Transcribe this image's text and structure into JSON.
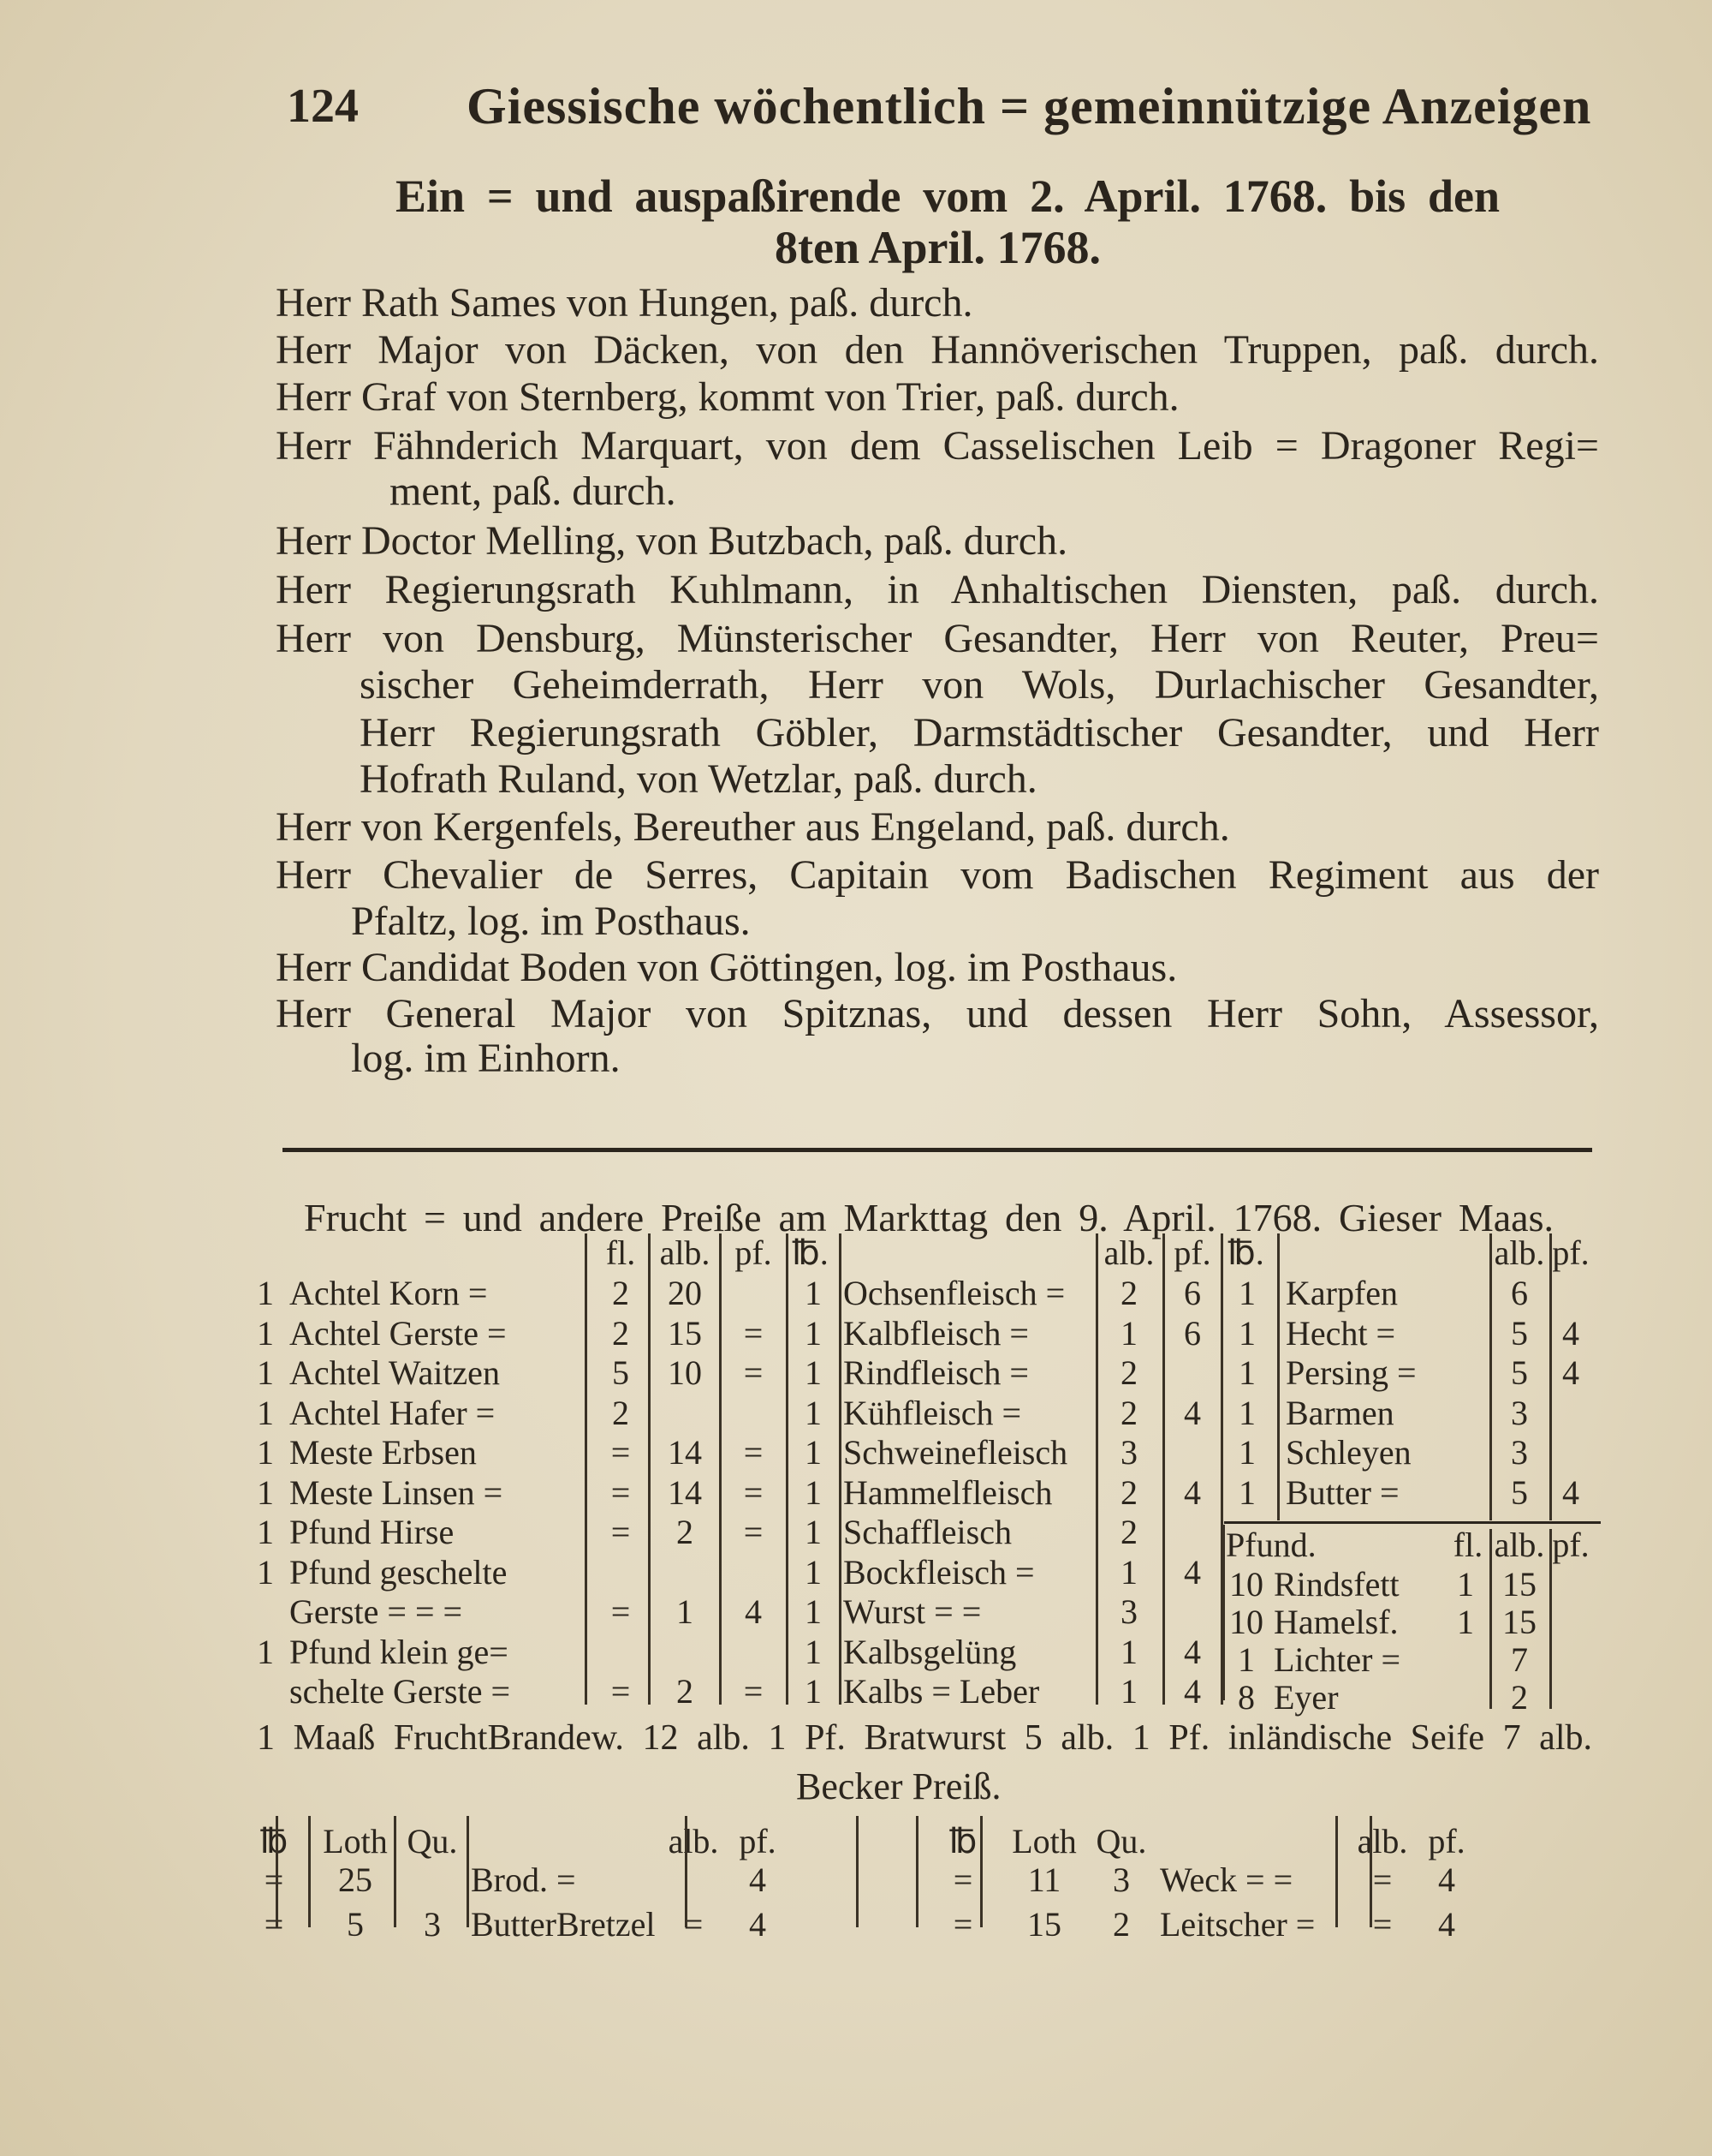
{
  "header": {
    "page_number": "124",
    "running_title": "Giessische wöchentlich = gemeinnützige Anzeigen"
  },
  "section": {
    "title_line1": "Ein = und auspaßirende vom 2. April. 1768. bis den",
    "title_line2": "8ten April. 1768."
  },
  "entries": [
    "Herr Rath Sames von Hungen, paß. durch.",
    "Herr Major von Däcken, von den Hannöverischen Truppen, paß. durch.",
    "Herr Graf von Sternberg, kommt von Trier, paß. durch.",
    "Herr Fähnderich Marquart, von dem Casselischen Leib = Dragoner Regi=",
    "ment, paß. durch.",
    "Herr Doctor Melling, von Butzbach, paß. durch.",
    "Herr Regierungsrath Kuhlmann, in Anhaltischen Diensten, paß. durch.",
    "Herr von Densburg, Münsterischer Gesandter, Herr von Reuter, Preu=",
    "sischer Geheimderrath, Herr von Wols, Durlachischer Gesandter,",
    "Herr Regierungsrath Göbler, Darmstädtischer Gesandter, und Herr",
    "Hofrath Ruland, von Wetzlar, paß. durch.",
    "Herr von Kergenfels, Bereuther aus Engeland, paß. durch.",
    "Herr Chevalier de Serres, Capitain vom Badischen Regiment aus der",
    "Pfaltz, log. im Posthaus.",
    "Herr Candidat Boden von Göttingen, log. im Posthaus.",
    "Herr General Major von Spitznas, und dessen Herr Sohn, Assessor,",
    "log. im Einhorn."
  ],
  "prices": {
    "title": "Frucht = und andere Preiße am Markttag den 9. April. 1768. Gieser Maas.",
    "grain": {
      "headers": [
        "fl.",
        "alb.",
        "pf."
      ],
      "rows": [
        [
          "1",
          "Achtel Korn =",
          "2",
          "20",
          ""
        ],
        [
          "1",
          "Achtel Gerste =",
          "2",
          "15",
          "="
        ],
        [
          "1",
          "Achtel Waitzen",
          "5",
          "10",
          "="
        ],
        [
          "1",
          "Achtel Hafer =",
          "2",
          "",
          ""
        ],
        [
          "1",
          "Meste Erbsen",
          "=",
          "14",
          "="
        ],
        [
          "1",
          "Meste Linsen =",
          "=",
          "14",
          "="
        ],
        [
          "1",
          "Pfund Hirse",
          "=",
          "2",
          "="
        ],
        [
          "1",
          "Pfund  geschelte",
          "",
          "",
          ""
        ],
        [
          "",
          "Gerste = = =",
          "=",
          "1",
          "4"
        ],
        [
          "1",
          "Pfund klein ge=",
          "",
          "",
          ""
        ],
        [
          "",
          "schelte Gerste =",
          "=",
          "2",
          "="
        ]
      ]
    },
    "meat": {
      "headers": [
        "℔.",
        "alb.",
        "pf."
      ],
      "rows": [
        [
          "1",
          "Ochsenfleisch =",
          "2",
          "6"
        ],
        [
          "1",
          "Kalbfleisch =",
          "1",
          "6"
        ],
        [
          "1",
          "Rindfleisch =",
          "2",
          ""
        ],
        [
          "1",
          "Kühfleisch =",
          "2",
          "4"
        ],
        [
          "1",
          "Schweinefleisch",
          "3",
          ""
        ],
        [
          "1",
          "Hammelfleisch",
          "2",
          "4"
        ],
        [
          "1",
          "Schaffleisch",
          "2",
          ""
        ],
        [
          "1",
          "Bockfleisch =",
          "1",
          "4"
        ],
        [
          "1",
          "Wurst = =",
          "3",
          ""
        ],
        [
          "1",
          "Kalbsgelüng",
          "1",
          "4"
        ],
        [
          "1",
          "Kalbs = Leber",
          "1",
          "4"
        ]
      ]
    },
    "fish": {
      "headers": [
        "℔.",
        "alb.",
        "pf."
      ],
      "rows": [
        [
          "1",
          "Karpfen",
          "6",
          ""
        ],
        [
          "1",
          "Hecht =",
          "5",
          "4"
        ],
        [
          "1",
          "Persing =",
          "5",
          "4"
        ],
        [
          "1",
          "Barmen",
          "3",
          ""
        ],
        [
          "1",
          "Schleyen",
          "3",
          ""
        ],
        [
          "1",
          "Butter =",
          "5",
          "4"
        ]
      ]
    },
    "pound": {
      "headers": [
        "Pfund.",
        "fl.",
        "alb.",
        "pf."
      ],
      "rows": [
        [
          "10",
          "Rindsfett",
          "1",
          "15",
          ""
        ],
        [
          "10",
          "Hamelsf.",
          "1",
          "15",
          ""
        ],
        [
          "1",
          "Lichter =",
          "",
          "7",
          ""
        ],
        [
          "8",
          "Eyer",
          "",
          "2",
          ""
        ]
      ]
    },
    "misc_line": "1 Maaß FruchtBrandew. 12 alb. 1 Pf. Bratwurst 5 alb. 1 Pf. inländische Seife 7 alb.",
    "baker": {
      "title": "Becker Preiß.",
      "headers": [
        "℔",
        "Loth",
        "Qu.",
        "alb.",
        "pf."
      ],
      "left_rows": [
        [
          "=",
          "25",
          "",
          "Brod. =",
          "",
          "4"
        ],
        [
          "=",
          "5",
          "3",
          "ButterBretzel",
          "=",
          "4"
        ]
      ],
      "right_rows": [
        [
          "=",
          "11",
          "3",
          "Weck = =",
          "=",
          "4"
        ],
        [
          "=",
          "15",
          "2",
          "Leitscher =",
          "=",
          "4"
        ]
      ]
    }
  }
}
